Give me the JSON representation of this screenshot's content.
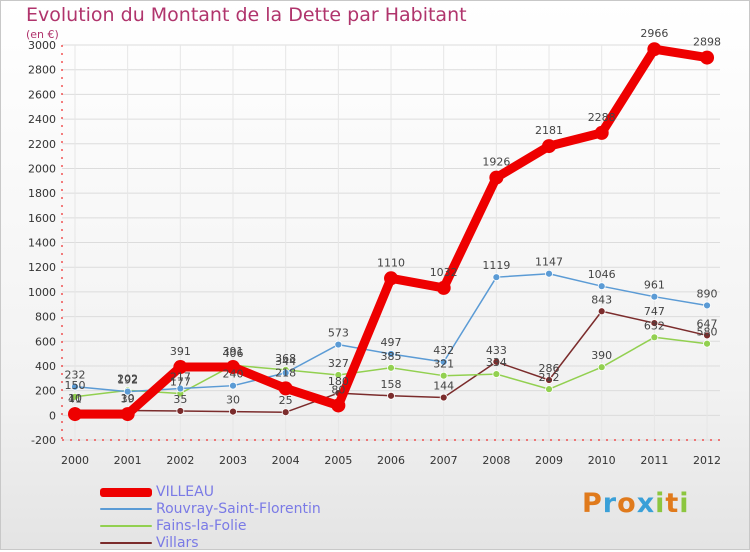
{
  "title": "Evolution du Montant de la Dette par Habitant",
  "subtitle": "(en €)",
  "brand": {
    "letters": [
      "P",
      "r",
      "o",
      "x",
      "i",
      "t",
      "i"
    ],
    "colors": [
      "#e07a1c",
      "#3aa0d8",
      "#e07a1c",
      "#3aa0d8",
      "#8cc63f",
      "#e07a1c",
      "#8cc63f"
    ]
  },
  "chart_data": {
    "type": "line",
    "title": "Evolution du Montant de la Dette par Habitant",
    "subtitle": "(en €)",
    "xlabel": "",
    "ylabel": "",
    "ylim": [
      -200,
      3000
    ],
    "yticks": [
      -200,
      0,
      200,
      400,
      600,
      800,
      1000,
      1200,
      1400,
      1600,
      1800,
      2000,
      2200,
      2400,
      2600,
      2800,
      3000
    ],
    "grid": true,
    "legend": "bottom-left",
    "x": [
      "2000",
      "2001",
      "2002",
      "2003",
      "2004",
      "2005",
      "2006",
      "2007",
      "2008",
      "2009",
      "2010",
      "2011",
      "2012"
    ],
    "series": [
      {
        "name": "VILLEAU",
        "color": "#ee0000",
        "values": [
          10,
          10,
          391,
          391,
          218,
          80,
          1110,
          1032,
          1926,
          2181,
          2288,
          2966,
          2898
        ],
        "labels": [
          "10",
          "10",
          "391",
          "391",
          "218",
          "80",
          "1110",
          "1032",
          "1926",
          "2181",
          "2288",
          "2966",
          "2898"
        ]
      },
      {
        "name": "Rouvray-Saint-Florentin",
        "color": "#5b9bd5",
        "values": [
          232,
          192,
          217,
          240,
          344,
          573,
          497,
          432,
          1119,
          1147,
          1046,
          961,
          890
        ],
        "labels": [
          "232",
          "192",
          "217",
          "240",
          "344",
          "573",
          "497",
          "432",
          "1119",
          "1147",
          "1046",
          "961",
          "890"
        ]
      },
      {
        "name": "Fains-la-Folie",
        "color": "#92d050",
        "values": [
          150,
          202,
          177,
          406,
          368,
          327,
          385,
          321,
          334,
          212,
          390,
          632,
          580
        ],
        "labels": [
          "150",
          "202",
          "177",
          "406",
          "368",
          "327",
          "385",
          "321",
          "334",
          "212",
          "390",
          "632",
          "580"
        ]
      },
      {
        "name": "Villars",
        "color": "#7b2c2c",
        "values": [
          41,
          39,
          35,
          30,
          25,
          180,
          158,
          144,
          433,
          286,
          843,
          747,
          647
        ],
        "labels": [
          "41",
          "39",
          "35",
          "30",
          "25",
          "180",
          "158",
          "144",
          "433",
          "286",
          "843",
          "747",
          "647"
        ]
      }
    ]
  }
}
